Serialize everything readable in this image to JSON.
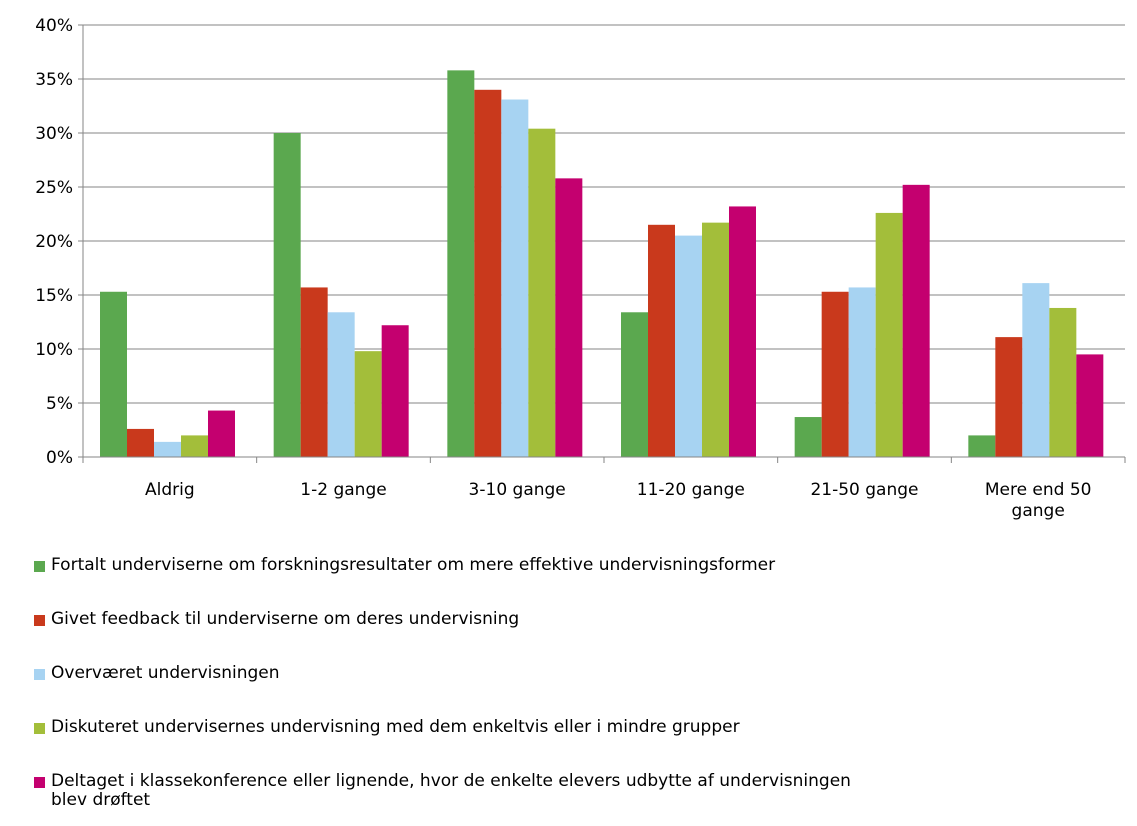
{
  "chart_data": {
    "type": "bar",
    "categories": [
      "Aldrig",
      "1-2 gange",
      "3-10 gange",
      "11-20 gange",
      "21-50 gange",
      "Mere end 50 gange"
    ],
    "series": [
      {
        "name": "Fortalt underviserne om forskningsresultater om mere effektive undervisningsformer",
        "color": "#5BA84F",
        "values": [
          15.3,
          30.0,
          35.8,
          13.4,
          3.7,
          2.0
        ]
      },
      {
        "name": "Givet feedback til underviserne om deres undervisning",
        "color": "#C9391C",
        "values": [
          2.6,
          15.7,
          34.0,
          21.5,
          15.3,
          11.1
        ]
      },
      {
        "name": "Overværet undervisningen",
        "color": "#A7D3F2",
        "values": [
          1.4,
          13.4,
          33.1,
          20.5,
          15.7,
          16.1
        ]
      },
      {
        "name": "Diskuteret undervisernes undervisning med dem enkeltvis eller i mindre grupper",
        "color": "#A3BE3A",
        "values": [
          2.0,
          9.8,
          30.4,
          21.7,
          22.6,
          13.8
        ]
      },
      {
        "name": "Deltaget i klassekonference eller lignende, hvor de enkelte elevers udbytte af undervisningen blev drøftet",
        "color": "#C4006F",
        "values": [
          4.3,
          12.2,
          25.8,
          23.2,
          25.2,
          9.5
        ]
      }
    ],
    "ylim": [
      0,
      40
    ],
    "yticks": [
      "0%",
      "5%",
      "10%",
      "15%",
      "20%",
      "25%",
      "30%",
      "35%",
      "40%"
    ],
    "grid": true,
    "legend_position": "bottom"
  }
}
